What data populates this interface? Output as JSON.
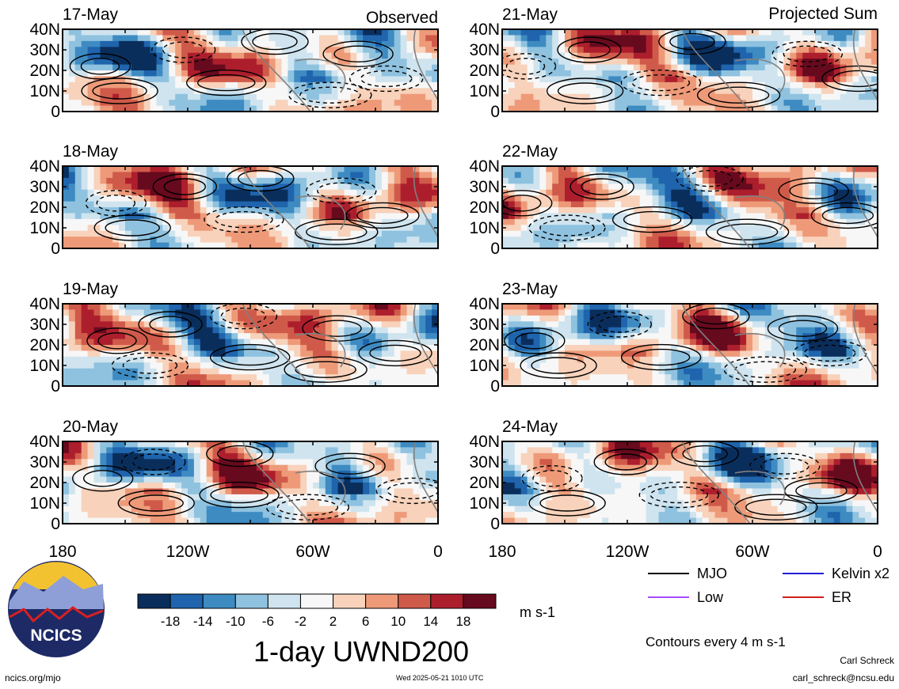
{
  "chart_data": {
    "type": "heatmap",
    "title": "1-day UWND200",
    "units": "m s-1",
    "contour_note": "Contours every 4 m s-1",
    "column_headers": {
      "left": "Observed",
      "right": "Projected Sum"
    },
    "x_tick_labels": [
      "180",
      "120W",
      "60W",
      "0"
    ],
    "y_tick_labels": [
      "40N",
      "30N",
      "20N",
      "10N",
      "0"
    ],
    "xlim": [
      -180,
      0
    ],
    "ylim": [
      0,
      40
    ],
    "colorbar": {
      "tick_labels": [
        "-18",
        "-14",
        "-10",
        "-6",
        "-2",
        "2",
        "6",
        "10",
        "14",
        "18"
      ],
      "colors": [
        "#0a2e5c",
        "#1f64ad",
        "#3e8bc2",
        "#8fc2df",
        "#cfe4ef",
        "#f7f7f7",
        "#f8d2bb",
        "#ee9a79",
        "#d05a4a",
        "#ad1e2d",
        "#670a1e"
      ]
    },
    "contour_legend": [
      {
        "name": "MJO",
        "color": "#000000"
      },
      {
        "name": "Kelvin x2",
        "color": "#1f1fd6"
      },
      {
        "name": "Low",
        "color": "#a64dff"
      },
      {
        "name": "ER",
        "color": "#d21e1e"
      }
    ],
    "panels": [
      {
        "date": "17-May",
        "column": "Observed"
      },
      {
        "date": "18-May",
        "column": "Observed"
      },
      {
        "date": "19-May",
        "column": "Observed"
      },
      {
        "date": "20-May",
        "column": "Observed"
      },
      {
        "date": "21-May",
        "column": "Projected Sum"
      },
      {
        "date": "22-May",
        "column": "Projected Sum"
      },
      {
        "date": "23-May",
        "column": "Projected Sum"
      },
      {
        "date": "24-May",
        "column": "Projected Sum"
      }
    ]
  },
  "footer": {
    "logo_text": "NCICS",
    "site": "ncics.org/mjo",
    "timestamp": "Wed 2025-05-21 1010 UTC",
    "author": "Carl Schreck",
    "email": "carl_schreck@ncsu.edu"
  }
}
